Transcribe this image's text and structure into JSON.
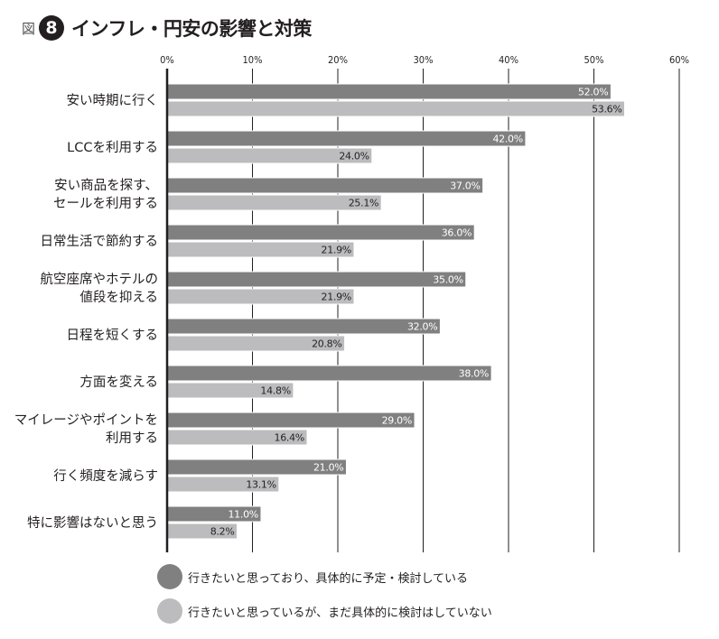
{
  "header": {
    "fig_label": "図",
    "fig_number": "8",
    "title": "インフレ・円安の影響と対策"
  },
  "colors": {
    "series1": "#808080",
    "series2": "#bcbcbe",
    "axis": "#231f20",
    "grid": "#231f20"
  },
  "chart_data": {
    "type": "bar",
    "orientation": "horizontal",
    "xlim": [
      0,
      60
    ],
    "ticks": [
      "0%",
      "10%",
      "20%",
      "30%",
      "40%",
      "50%",
      "60%"
    ],
    "tick_values": [
      0,
      10,
      20,
      30,
      40,
      50,
      60
    ],
    "grid": true,
    "categories": [
      [
        "安い時期に行く"
      ],
      [
        "LCCを利用する"
      ],
      [
        "安い商品を探す、",
        "セールを利用する"
      ],
      [
        "日常生活で節約する"
      ],
      [
        "航空座席やホテルの",
        "値段を抑える"
      ],
      [
        "日程を短くする"
      ],
      [
        "方面を変える"
      ],
      [
        "マイレージやポイントを",
        "利用する"
      ],
      [
        "行く頻度を減らす"
      ],
      [
        "特に影響はないと思う"
      ]
    ],
    "series": [
      {
        "name": "行きたいと思っており、具体的に予定・検討している",
        "values": [
          52.0,
          42.0,
          37.0,
          36.0,
          35.0,
          32.0,
          38.0,
          29.0,
          21.0,
          11.0
        ],
        "labels": [
          "52.0%",
          "42.0%",
          "37.0%",
          "36.0%",
          "35.0%",
          "32.0%",
          "38.0%",
          "29.0%",
          "21.0%",
          "11.0%"
        ]
      },
      {
        "name": "行きたいと思っているが、まだ具体的に検討はしていない",
        "values": [
          53.6,
          24.0,
          25.1,
          21.9,
          21.9,
          20.8,
          14.8,
          16.4,
          13.1,
          8.2
        ],
        "labels": [
          "53.6%",
          "24.0%",
          "25.1%",
          "21.9%",
          "21.9%",
          "20.8%",
          "14.8%",
          "16.4%",
          "13.1%",
          "8.2%"
        ]
      }
    ],
    "legend_position": "bottom-left"
  }
}
